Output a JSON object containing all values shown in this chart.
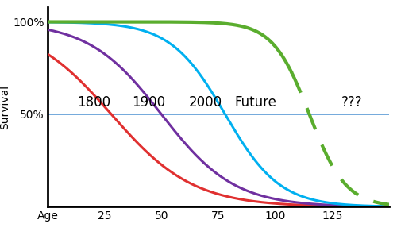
{
  "title": "",
  "xlabel": "Age",
  "ylabel": "Survival",
  "xlim": [
    0,
    150
  ],
  "ylim": [
    0.0,
    1.08
  ],
  "xticks": [
    0,
    25,
    50,
    75,
    100,
    125
  ],
  "xticklabels": [
    "Age",
    "25",
    "50",
    "75",
    "100",
    "125"
  ],
  "ytick_positions": [
    0.5,
    1.0
  ],
  "ytick_labels": [
    "50%",
    "100%"
  ],
  "hline_y": 0.5,
  "hline_color": "#5b9bd5",
  "curve_1800_color": "#e03030",
  "curve_1900_color": "#7030a0",
  "curve_2000_color": "#00b0f0",
  "curve_future_color": "#5aad2e",
  "label_1800": "1800",
  "label_1900": "1900",
  "label_2000": "2000",
  "label_future": "Future",
  "label_qqq": "???",
  "label_fontsize": 12,
  "axis_ylabel_fontsize": 10,
  "background_color": "#ffffff",
  "linewidth_curves": 2.2,
  "linewidth_future": 3.0,
  "linewidth_axes": 2.0
}
